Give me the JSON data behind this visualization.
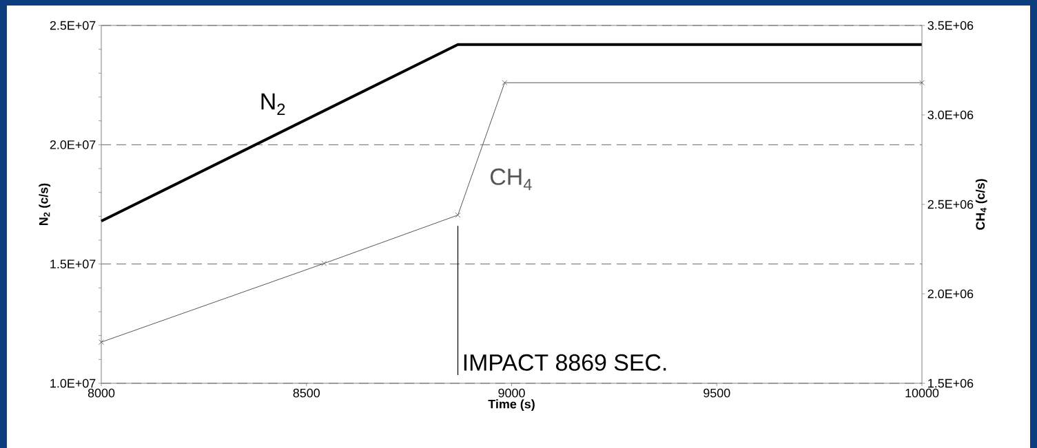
{
  "chart_data": {
    "type": "line",
    "xlabel": "Time (s)",
    "ylabel": "N$_{2}$ (c/s)",
    "y2label": "CH$_{4}$ (c/s)",
    "xlim": [
      8000,
      10000
    ],
    "xticks": [
      8000,
      8500,
      9000,
      9500,
      10000
    ],
    "ylim": [
      10000000,
      25000000
    ],
    "yticks": [
      {
        "value": 10000000,
        "label": "1.0E+07"
      },
      {
        "value": 15000000,
        "label": "1.5E+07"
      },
      {
        "value": 20000000,
        "label": "2.0E+07"
      },
      {
        "value": 25000000,
        "label": "2.5E+07"
      }
    ],
    "y2lim": [
      1500000,
      3500000
    ],
    "y2ticks": [
      {
        "value": 1500000,
        "label": "1.5E+06"
      },
      {
        "value": 2000000,
        "label": "2.0E+06"
      },
      {
        "value": 2500000,
        "label": "2.5E+06"
      },
      {
        "value": 3000000,
        "label": "3.0E+06"
      },
      {
        "value": 3500000,
        "label": "3.5E+06"
      }
    ],
    "grid": "y",
    "legend": false,
    "series": [
      {
        "name": "N$_{2}$",
        "color": "#000000",
        "marker": "none",
        "x": [
          8000,
          8869,
          10000
        ],
        "values": [
          16800000,
          24200000,
          24200000
        ]
      },
      {
        "name": "CH$_{4}$",
        "color": "#555555",
        "marker": "cross",
        "axis": "y2",
        "x": [
          8000,
          8543,
          8869,
          8983,
          10000
        ],
        "values": [
          1730000,
          2170000,
          2440000,
          3180000,
          3180000
        ]
      }
    ],
    "ref_lines": [
      {
        "axis": "x",
        "value": 8869,
        "label": "IMPACT 8869 SEC."
      }
    ]
  }
}
